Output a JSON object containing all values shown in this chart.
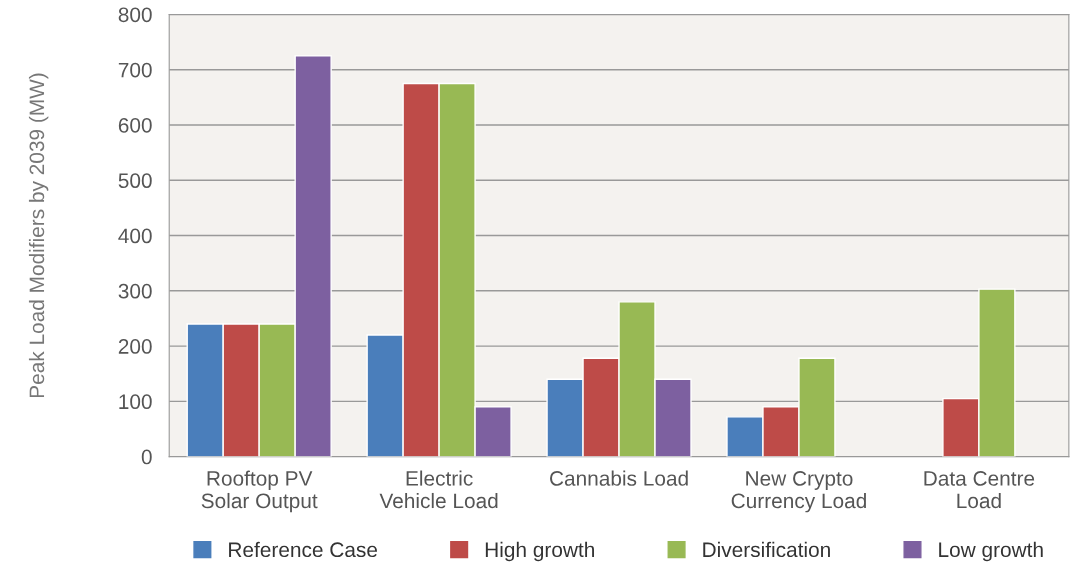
{
  "chart_data": {
    "type": "bar",
    "ylabel": "Peak Load Modifiers by 2039 (MW)",
    "categories": [
      "Rooftop PV\nSolar Output",
      "Electric\nVehicle Load",
      "Cannabis Load",
      "New Crypto\nCurrency Load",
      "Data Centre\nLoad"
    ],
    "series": [
      {
        "name": "Reference Case",
        "color": "#4a7ebb",
        "values": [
          240,
          220,
          140,
          72,
          null
        ]
      },
      {
        "name": "High growth",
        "color": "#be4b48",
        "values": [
          240,
          675,
          178,
          90,
          105
        ]
      },
      {
        "name": "Diversification",
        "color": "#98b954",
        "values": [
          240,
          675,
          280,
          178,
          303
        ]
      },
      {
        "name": "Low growth",
        "color": "#7d60a0",
        "values": [
          725,
          90,
          140,
          null,
          null
        ]
      }
    ],
    "ylim": [
      0,
      800
    ],
    "yticks": [
      0,
      100,
      200,
      300,
      400,
      500,
      600,
      700,
      800
    ],
    "grid": "y",
    "legend": "bottom"
  }
}
